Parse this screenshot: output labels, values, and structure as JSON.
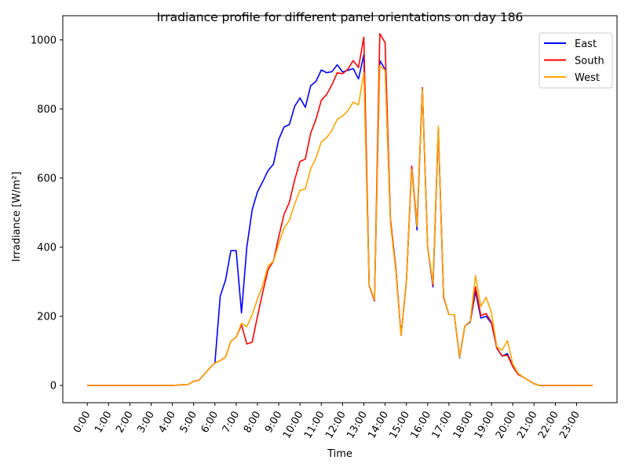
{
  "chart_data": {
    "type": "line",
    "title": "Irradiance profile for different panel orientations on day 186",
    "xlabel": "Time",
    "ylabel": "Irradiance [W/m²]",
    "x_unit": "hours",
    "x_step_hours": 0.25,
    "x_start_hours": 0,
    "xlim": [
      -1.15,
      24.9
    ],
    "ylim": [
      -50,
      1070
    ],
    "x_tick_labels": [
      "0:00",
      "1:00",
      "2:00",
      "3:00",
      "4:00",
      "5:00",
      "6:00",
      "7:00",
      "8:00",
      "9:00",
      "10:00",
      "11:00",
      "12:00",
      "13:00",
      "14:00",
      "15:00",
      "16:00",
      "17:00",
      "18:00",
      "19:00",
      "20:00",
      "21:00",
      "22:00",
      "23:00"
    ],
    "y_ticks": [
      0,
      200,
      400,
      600,
      800,
      1000
    ],
    "y_tick_labels": [
      "0",
      "200",
      "400",
      "600",
      "800",
      "1000"
    ],
    "grid": false,
    "legend": "top-right",
    "series": [
      {
        "name": "East",
        "color": "#0000ff",
        "values": [
          0,
          0,
          0,
          0,
          0,
          0,
          0,
          0,
          0,
          0,
          0,
          0,
          0,
          0,
          0,
          0,
          0,
          1,
          2,
          3,
          12,
          15,
          32,
          50,
          65,
          258,
          305,
          390,
          390,
          210,
          400,
          508,
          560,
          590,
          622,
          640,
          712,
          748,
          755,
          808,
          832,
          805,
          867,
          880,
          913,
          905,
          908,
          928,
          907,
          912,
          917,
          887,
          957,
          290,
          245,
          940,
          915,
          480,
          340,
          145,
          300,
          630,
          450,
          860,
          400,
          285,
          740,
          255,
          205,
          205,
          80,
          172,
          183,
          272,
          195,
          200,
          180,
          108,
          85,
          92,
          55,
          32,
          24,
          14,
          5,
          0,
          0,
          0,
          0,
          0,
          0,
          0,
          0,
          0,
          0,
          0
        ]
      },
      {
        "name": "South",
        "color": "#ff0000",
        "values": [
          0,
          0,
          0,
          0,
          0,
          0,
          0,
          0,
          0,
          0,
          0,
          0,
          0,
          0,
          0,
          0,
          0,
          1,
          2,
          3,
          12,
          15,
          32,
          50,
          65,
          72,
          82,
          128,
          140,
          175,
          120,
          125,
          200,
          270,
          335,
          360,
          430,
          495,
          530,
          595,
          648,
          655,
          730,
          770,
          825,
          842,
          870,
          905,
          902,
          915,
          940,
          920,
          1008,
          290,
          245,
          1018,
          992,
          480,
          340,
          145,
          300,
          635,
          465,
          862,
          400,
          290,
          745,
          255,
          205,
          205,
          82,
          172,
          185,
          285,
          202,
          208,
          182,
          108,
          85,
          88,
          55,
          32,
          24,
          14,
          5,
          0,
          0,
          0,
          0,
          0,
          0,
          0,
          0,
          0,
          0,
          0
        ]
      },
      {
        "name": "West",
        "color": "#ffa500",
        "values": [
          0,
          0,
          0,
          0,
          0,
          0,
          0,
          0,
          0,
          0,
          0,
          0,
          0,
          0,
          0,
          0,
          0,
          1,
          2,
          3,
          12,
          15,
          32,
          50,
          65,
          72,
          82,
          128,
          140,
          180,
          170,
          205,
          250,
          290,
          345,
          360,
          410,
          455,
          478,
          525,
          565,
          568,
          627,
          658,
          705,
          717,
          738,
          770,
          780,
          795,
          820,
          812,
          905,
          292,
          248,
          925,
          912,
          470,
          332,
          145,
          300,
          625,
          460,
          858,
          400,
          295,
          750,
          258,
          205,
          205,
          82,
          172,
          185,
          318,
          228,
          255,
          210,
          112,
          102,
          130,
          62,
          35,
          24,
          14,
          5,
          0,
          0,
          0,
          0,
          0,
          0,
          0,
          0,
          0,
          0,
          0
        ]
      }
    ]
  }
}
